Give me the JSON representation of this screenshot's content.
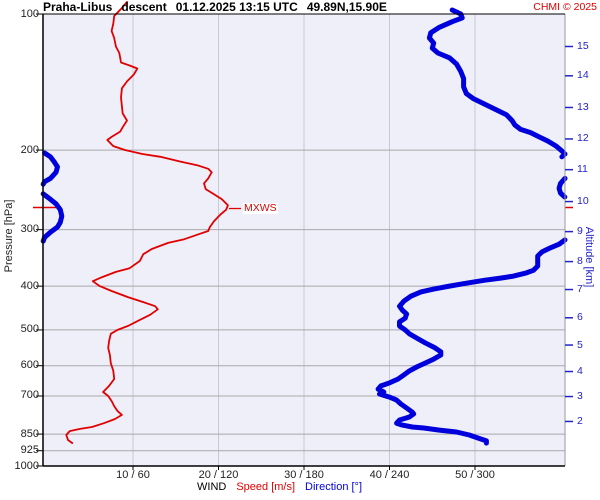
{
  "header": {
    "station": "Praha-Libus",
    "sounding_type": "descent",
    "datetime": "01.12.2025 13:15 UTC",
    "coords": "49.89N,15.90E",
    "credit": "CHMI © 2025"
  },
  "legend": {
    "wind": "WIND",
    "speed": "Speed [m/s]",
    "direction": "Direction [°]"
  },
  "colors": {
    "speed": "#e10000",
    "direction": "#0000dd",
    "plot_bg": "#efeffa",
    "grid_h": "#a9a9a9",
    "grid_v": "#c9c9d4",
    "axis": "#000000",
    "alt_axis": "#2323cc",
    "credit": "#e10000"
  },
  "chart_data": {
    "type": "line",
    "title": "Praha-Libus descent 01.12.2025 13:15 UTC 49.89N,15.90E",
    "y_axis": {
      "label": "Pressure [hPa]",
      "scale": "log",
      "range": [
        100,
        1000
      ],
      "ticks": [
        100,
        200,
        300,
        400,
        500,
        600,
        700,
        850,
        925,
        1000
      ]
    },
    "y2_axis": {
      "label": "Altitude [km]",
      "ticks": [
        {
          "km": 15,
          "p": 118
        },
        {
          "km": 14,
          "p": 137
        },
        {
          "km": 13,
          "p": 161
        },
        {
          "km": 12,
          "p": 189
        },
        {
          "km": 11,
          "p": 221
        },
        {
          "km": 10,
          "p": 260
        },
        {
          "km": 9,
          "p": 303
        },
        {
          "km": 8,
          "p": 353
        },
        {
          "km": 7,
          "p": 407
        },
        {
          "km": 6,
          "p": 470
        },
        {
          "km": 5,
          "p": 540
        },
        {
          "km": 4,
          "p": 618
        },
        {
          "km": 3,
          "p": 702
        },
        {
          "km": 2,
          "p": 797
        }
      ]
    },
    "x_axis": {
      "speed_ticks": [
        10,
        20,
        30,
        40,
        50
      ],
      "direction_ticks": [
        60,
        120,
        180,
        240,
        300
      ],
      "tick_labels": [
        "10 / 60",
        "20 / 120",
        "30 / 180",
        "40 / 240",
        "50 / 300"
      ],
      "speed_unit": "m/s",
      "direction_unit": "deg",
      "speed_max": 60.5,
      "direction_max": 363
    },
    "annotations": [
      {
        "label": "MXWS",
        "p": 268,
        "speed": 21.1
      }
    ],
    "series": [
      {
        "name": "Speed [m/s]",
        "axis": "speed",
        "points": [
          [
            94,
            9.3
          ],
          [
            97,
            8.7
          ],
          [
            101,
            7.8
          ],
          [
            105,
            7.7
          ],
          [
            109,
            7.5
          ],
          [
            113,
            7.8
          ],
          [
            118,
            8.0
          ],
          [
            122,
            8.4
          ],
          [
            125,
            8.5
          ],
          [
            128,
            8.6
          ],
          [
            130,
            9.6
          ],
          [
            132,
            10.5
          ],
          [
            136,
            10.1
          ],
          [
            141,
            9.3
          ],
          [
            146,
            8.7
          ],
          [
            153,
            8.6
          ],
          [
            160,
            8.7
          ],
          [
            166,
            8.8
          ],
          [
            172,
            9.3
          ],
          [
            178,
            8.8
          ],
          [
            182,
            8.5
          ],
          [
            187,
            7.5
          ],
          [
            190,
            7.0
          ],
          [
            196,
            7.7
          ],
          [
            200,
            9.1
          ],
          [
            204,
            11.1
          ],
          [
            207,
            13.2
          ],
          [
            212,
            15.5
          ],
          [
            216,
            17.5
          ],
          [
            220,
            18.8
          ],
          [
            224,
            19.2
          ],
          [
            231,
            18.8
          ],
          [
            237,
            18.3
          ],
          [
            244,
            18.5
          ],
          [
            250,
            19.4
          ],
          [
            257,
            20.4
          ],
          [
            265,
            21.1
          ],
          [
            271,
            20.9
          ],
          [
            278,
            20.2
          ],
          [
            287,
            19.5
          ],
          [
            296,
            19.0
          ],
          [
            302,
            18.8
          ],
          [
            307,
            17.7
          ],
          [
            315,
            16.0
          ],
          [
            321,
            14.1
          ],
          [
            331,
            12.2
          ],
          [
            340,
            11.2
          ],
          [
            352,
            10.8
          ],
          [
            365,
            9.6
          ],
          [
            372,
            8.0
          ],
          [
            382,
            6.4
          ],
          [
            390,
            5.3
          ],
          [
            400,
            6.1
          ],
          [
            410,
            7.5
          ],
          [
            423,
            9.4
          ],
          [
            434,
            11.2
          ],
          [
            443,
            12.6
          ],
          [
            450,
            12.9
          ],
          [
            463,
            12.0
          ],
          [
            475,
            10.8
          ],
          [
            490,
            9.4
          ],
          [
            500,
            8.2
          ],
          [
            510,
            7.4
          ],
          [
            529,
            7.2
          ],
          [
            548,
            7.1
          ],
          [
            568,
            7.3
          ],
          [
            592,
            7.4
          ],
          [
            616,
            7.7
          ],
          [
            642,
            7.8
          ],
          [
            665,
            7.2
          ],
          [
            686,
            6.5
          ],
          [
            700,
            7.1
          ],
          [
            718,
            7.5
          ],
          [
            737,
            7.8
          ],
          [
            756,
            8.2
          ],
          [
            771,
            8.7
          ],
          [
            787,
            7.9
          ],
          [
            804,
            6.6
          ],
          [
            820,
            5.2
          ],
          [
            828,
            3.8
          ],
          [
            837,
            2.6
          ],
          [
            854,
            2.2
          ],
          [
            876,
            2.4
          ],
          [
            890,
            2.9
          ]
        ]
      },
      {
        "name": "Direction [°]",
        "axis": "direction",
        "segments": [
          [
            [
              98,
              284
            ],
            [
              100,
              290
            ],
            [
              102,
              291
            ],
            [
              104,
              284
            ],
            [
              107,
              275
            ],
            [
              110,
              269
            ],
            [
              113,
              268
            ],
            [
              116,
              271
            ],
            [
              119,
              270
            ],
            [
              122,
              274
            ],
            [
              125,
              282
            ],
            [
              129,
              287
            ],
            [
              134,
              290
            ],
            [
              139,
              292
            ],
            [
              145,
              292
            ],
            [
              150,
              294
            ],
            [
              154,
              299
            ],
            [
              159,
              308
            ],
            [
              163,
              315
            ],
            [
              167,
              322
            ],
            [
              172,
              326
            ],
            [
              176,
              328
            ],
            [
              180,
              332
            ],
            [
              183,
              339
            ],
            [
              187,
              345
            ],
            [
              191,
              351
            ],
            [
              196,
              357
            ],
            [
              201,
              361
            ],
            [
              204,
              364
            ],
            [
              207,
              361
            ]
          ],
          [
            [
              203,
              -2
            ],
            [
              207,
              2
            ],
            [
              213,
              5
            ],
            [
              218,
              7
            ],
            [
              224,
              6
            ],
            [
              231,
              2
            ],
            [
              235,
              -2
            ],
            [
              238,
              -3
            ]
          ],
          [
            [
              231,
              364
            ],
            [
              237,
              360
            ],
            [
              243,
              359
            ],
            [
              249,
              360
            ],
            [
              254,
              363
            ]
          ],
          [
            [
              250,
              -3
            ],
            [
              257,
              2
            ],
            [
              263,
              6
            ],
            [
              271,
              9
            ],
            [
              280,
              10
            ],
            [
              289,
              9
            ],
            [
              296,
              7
            ],
            [
              304,
              2
            ],
            [
              312,
              -2
            ],
            [
              318,
              -3
            ]
          ],
          [
            [
              316,
              364
            ],
            [
              323,
              359
            ],
            [
              329,
              353
            ],
            [
              336,
              347
            ],
            [
              343,
              344
            ],
            [
              352,
              344
            ],
            [
              361,
              344
            ],
            [
              369,
              341
            ],
            [
              374,
              336
            ],
            [
              380,
              327
            ],
            [
              384,
              318
            ],
            [
              388,
              307
            ],
            [
              394,
              294
            ],
            [
              400,
              282
            ],
            [
              406,
              271
            ],
            [
              412,
              262
            ],
            [
              421,
              255
            ],
            [
              432,
              250
            ],
            [
              443,
              247
            ],
            [
              452,
              249
            ],
            [
              461,
              252
            ],
            [
              471,
              251
            ],
            [
              480,
              247
            ],
            [
              490,
              247
            ],
            [
              500,
              251
            ],
            [
              510,
              254
            ],
            [
              521,
              259
            ],
            [
              534,
              265
            ],
            [
              548,
              272
            ],
            [
              559,
              276
            ],
            [
              568,
              276
            ],
            [
              580,
              271
            ],
            [
              592,
              265
            ],
            [
              604,
              259
            ],
            [
              616,
              254
            ],
            [
              629,
              250
            ],
            [
              642,
              246
            ],
            [
              655,
              240
            ],
            [
              665,
              234
            ],
            [
              676,
              232
            ],
            [
              686,
              236
            ],
            [
              693,
              233
            ],
            [
              704,
              240
            ],
            [
              715,
              245
            ],
            [
              729,
              248
            ],
            [
              744,
              252
            ],
            [
              760,
              256
            ],
            [
              767,
              257
            ],
            [
              779,
              254
            ],
            [
              791,
              247
            ],
            [
              804,
              245
            ],
            [
              812,
              249
            ],
            [
              820,
              256
            ],
            [
              824,
              264
            ],
            [
              833,
              275
            ],
            [
              841,
              287
            ],
            [
              854,
              296
            ],
            [
              867,
              302
            ],
            [
              880,
              308
            ],
            [
              890,
              308
            ]
          ]
        ]
      }
    ]
  }
}
